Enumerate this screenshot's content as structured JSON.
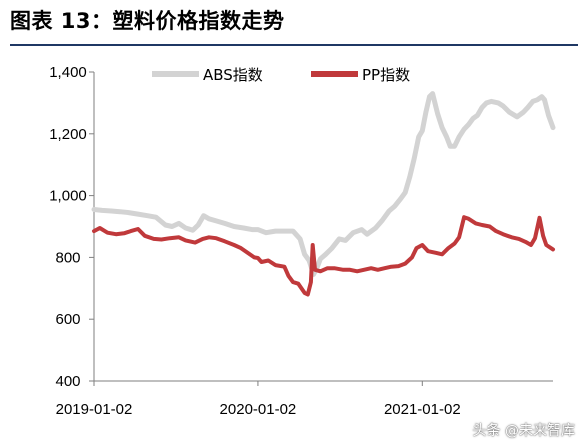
{
  "figure": {
    "title": "图表 13：塑料价格指数走势"
  },
  "watermark": "头条 @未来智库",
  "chart_data": {
    "type": "line",
    "title": "图表 13：塑料价格指数走势",
    "xlabel": "",
    "ylabel": "",
    "xlim": [
      "2019-01-02",
      "2021-10-20"
    ],
    "ylim": [
      400,
      1400
    ],
    "yticks": [
      400,
      600,
      800,
      1000,
      1200,
      1400
    ],
    "ytick_labels": [
      "400",
      "600",
      "800",
      "1,000",
      "1,200",
      "1,400"
    ],
    "xticks": [
      "2019-01-02",
      "2020-01-02",
      "2021-01-02"
    ],
    "grid": false,
    "legend_position": "top",
    "series": [
      {
        "name": "ABS指数",
        "color": "#d3d3d3",
        "points": [
          [
            "2019-01-02",
            955
          ],
          [
            "2019-01-20",
            952
          ],
          [
            "2019-02-10",
            950
          ],
          [
            "2019-03-01",
            948
          ],
          [
            "2019-03-20",
            945
          ],
          [
            "2019-04-10",
            940
          ],
          [
            "2019-05-01",
            935
          ],
          [
            "2019-05-20",
            930
          ],
          [
            "2019-06-10",
            905
          ],
          [
            "2019-06-25",
            900
          ],
          [
            "2019-07-10",
            910
          ],
          [
            "2019-07-25",
            895
          ],
          [
            "2019-08-10",
            888
          ],
          [
            "2019-08-22",
            905
          ],
          [
            "2019-09-03",
            935
          ],
          [
            "2019-09-15",
            925
          ],
          [
            "2019-10-01",
            918
          ],
          [
            "2019-10-20",
            910
          ],
          [
            "2019-11-10",
            900
          ],
          [
            "2019-12-01",
            895
          ],
          [
            "2019-12-20",
            890
          ],
          [
            "2020-01-02",
            890
          ],
          [
            "2020-01-20",
            880
          ],
          [
            "2020-02-10",
            885
          ],
          [
            "2020-03-01",
            885
          ],
          [
            "2020-03-20",
            885
          ],
          [
            "2020-04-05",
            860
          ],
          [
            "2020-04-15",
            810
          ],
          [
            "2020-04-25",
            790
          ],
          [
            "2020-05-05",
            745
          ],
          [
            "2020-05-12",
            765
          ],
          [
            "2020-05-20",
            795
          ],
          [
            "2020-06-01",
            810
          ],
          [
            "2020-06-15",
            830
          ],
          [
            "2020-07-01",
            860
          ],
          [
            "2020-07-15",
            855
          ],
          [
            "2020-08-01",
            880
          ],
          [
            "2020-08-20",
            890
          ],
          [
            "2020-09-01",
            875
          ],
          [
            "2020-09-20",
            895
          ],
          [
            "2020-10-05",
            920
          ],
          [
            "2020-10-20",
            950
          ],
          [
            "2020-11-01",
            965
          ],
          [
            "2020-11-15",
            990
          ],
          [
            "2020-11-25",
            1010
          ],
          [
            "2020-12-05",
            1060
          ],
          [
            "2020-12-15",
            1120
          ],
          [
            "2020-12-25",
            1190
          ],
          [
            "2021-01-02",
            1210
          ],
          [
            "2021-01-10",
            1270
          ],
          [
            "2021-01-18",
            1320
          ],
          [
            "2021-01-25",
            1330
          ],
          [
            "2021-02-05",
            1265
          ],
          [
            "2021-02-15",
            1220
          ],
          [
            "2021-02-25",
            1190
          ],
          [
            "2021-03-05",
            1160
          ],
          [
            "2021-03-15",
            1160
          ],
          [
            "2021-03-25",
            1190
          ],
          [
            "2021-04-05",
            1215
          ],
          [
            "2021-04-15",
            1230
          ],
          [
            "2021-04-25",
            1250
          ],
          [
            "2021-05-05",
            1260
          ],
          [
            "2021-05-15",
            1285
          ],
          [
            "2021-05-25",
            1300
          ],
          [
            "2021-06-05",
            1305
          ],
          [
            "2021-06-20",
            1300
          ],
          [
            "2021-07-01",
            1290
          ],
          [
            "2021-07-15",
            1270
          ],
          [
            "2021-08-01",
            1255
          ],
          [
            "2021-08-15",
            1270
          ],
          [
            "2021-08-25",
            1285
          ],
          [
            "2021-09-05",
            1305
          ],
          [
            "2021-09-15",
            1310
          ],
          [
            "2021-09-25",
            1320
          ],
          [
            "2021-10-01",
            1310
          ],
          [
            "2021-10-10",
            1260
          ],
          [
            "2021-10-20",
            1220
          ]
        ]
      },
      {
        "name": "PP指数",
        "color": "#c0393b",
        "points": [
          [
            "2019-01-02",
            885
          ],
          [
            "2019-01-15",
            895
          ],
          [
            "2019-02-01",
            880
          ],
          [
            "2019-02-20",
            875
          ],
          [
            "2019-03-10",
            878
          ],
          [
            "2019-03-25",
            885
          ],
          [
            "2019-04-10",
            892
          ],
          [
            "2019-04-25",
            870
          ],
          [
            "2019-05-15",
            860
          ],
          [
            "2019-06-01",
            858
          ],
          [
            "2019-06-20",
            862
          ],
          [
            "2019-07-10",
            865
          ],
          [
            "2019-07-25",
            855
          ],
          [
            "2019-08-15",
            848
          ],
          [
            "2019-09-01",
            860
          ],
          [
            "2019-09-15",
            865
          ],
          [
            "2019-10-01",
            862
          ],
          [
            "2019-10-20",
            852
          ],
          [
            "2019-11-10",
            840
          ],
          [
            "2019-11-25",
            830
          ],
          [
            "2019-12-10",
            815
          ],
          [
            "2019-12-25",
            800
          ],
          [
            "2020-01-02",
            798
          ],
          [
            "2020-01-10",
            785
          ],
          [
            "2020-01-25",
            790
          ],
          [
            "2020-02-10",
            775
          ],
          [
            "2020-03-01",
            770
          ],
          [
            "2020-03-10",
            740
          ],
          [
            "2020-03-20",
            720
          ],
          [
            "2020-04-01",
            715
          ],
          [
            "2020-04-15",
            685
          ],
          [
            "2020-04-22",
            680
          ],
          [
            "2020-04-29",
            720
          ],
          [
            "2020-05-03",
            840
          ],
          [
            "2020-05-08",
            760
          ],
          [
            "2020-05-20",
            755
          ],
          [
            "2020-06-05",
            765
          ],
          [
            "2020-06-20",
            765
          ],
          [
            "2020-07-10",
            760
          ],
          [
            "2020-07-25",
            760
          ],
          [
            "2020-08-10",
            755
          ],
          [
            "2020-08-25",
            760
          ],
          [
            "2020-09-10",
            765
          ],
          [
            "2020-09-25",
            760
          ],
          [
            "2020-10-10",
            765
          ],
          [
            "2020-10-25",
            770
          ],
          [
            "2020-11-10",
            772
          ],
          [
            "2020-11-25",
            780
          ],
          [
            "2020-12-10",
            800
          ],
          [
            "2020-12-20",
            830
          ],
          [
            "2021-01-02",
            840
          ],
          [
            "2021-01-15",
            820
          ],
          [
            "2021-02-01",
            815
          ],
          [
            "2021-02-15",
            810
          ],
          [
            "2021-03-01",
            830
          ],
          [
            "2021-03-15",
            845
          ],
          [
            "2021-03-25",
            865
          ],
          [
            "2021-04-05",
            930
          ],
          [
            "2021-04-15",
            925
          ],
          [
            "2021-05-01",
            910
          ],
          [
            "2021-05-15",
            905
          ],
          [
            "2021-06-01",
            900
          ],
          [
            "2021-06-15",
            885
          ],
          [
            "2021-07-01",
            875
          ],
          [
            "2021-07-20",
            865
          ],
          [
            "2021-08-05",
            860
          ],
          [
            "2021-08-20",
            850
          ],
          [
            "2021-09-01",
            840
          ],
          [
            "2021-09-10",
            862
          ],
          [
            "2021-09-20",
            928
          ],
          [
            "2021-09-28",
            870
          ],
          [
            "2021-10-05",
            840
          ],
          [
            "2021-10-20",
            826
          ]
        ]
      }
    ]
  }
}
